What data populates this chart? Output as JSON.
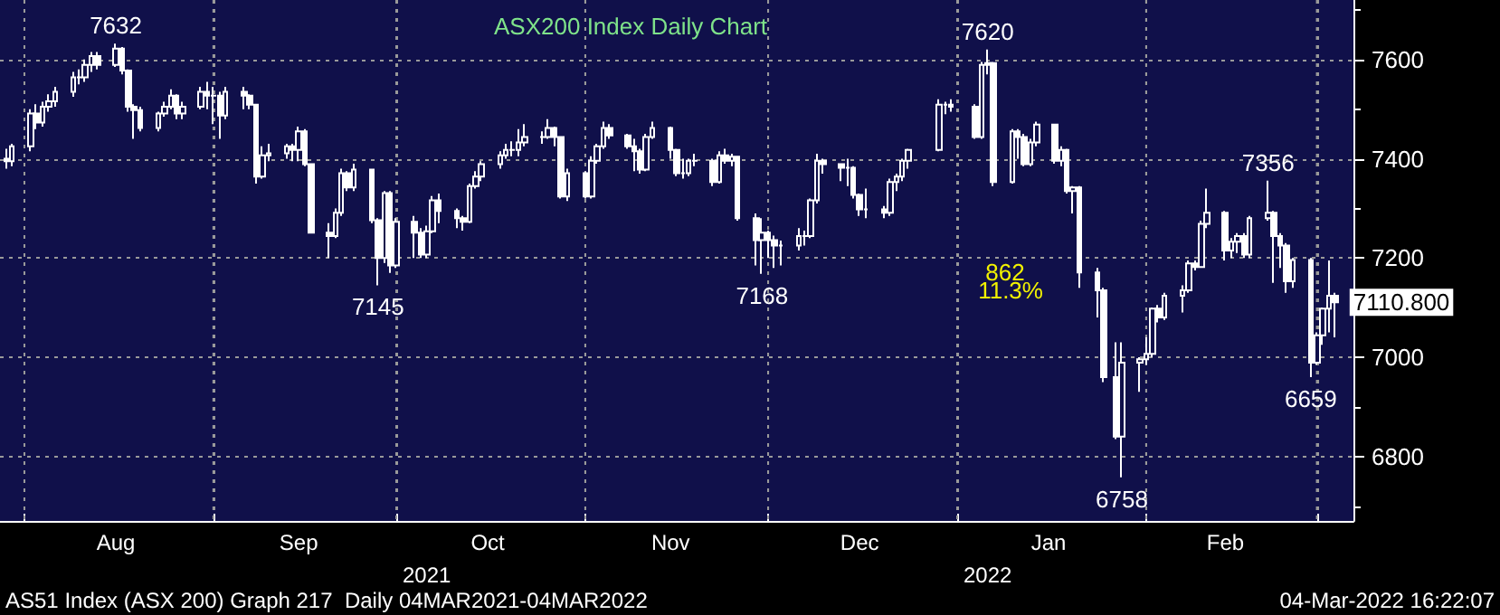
{
  "chart_data": {
    "type": "candlestick",
    "title": "ASX200 Index Daily Chart",
    "x": [
      "2021-07-29",
      "2021-07-30",
      "2021-08-02",
      "2021-08-03",
      "2021-08-04",
      "2021-08-05",
      "2021-08-06",
      "2021-08-09",
      "2021-08-10",
      "2021-08-11",
      "2021-08-12",
      "2021-08-13",
      "2021-08-16",
      "2021-08-17",
      "2021-08-18",
      "2021-08-19",
      "2021-08-20",
      "2021-08-23",
      "2021-08-24",
      "2021-08-25",
      "2021-08-26",
      "2021-08-27",
      "2021-08-30",
      "2021-08-31",
      "2021-09-01",
      "2021-09-02",
      "2021-09-03",
      "2021-09-06",
      "2021-09-07",
      "2021-09-08",
      "2021-09-09",
      "2021-09-10",
      "2021-09-13",
      "2021-09-14",
      "2021-09-15",
      "2021-09-16",
      "2021-09-17",
      "2021-09-20",
      "2021-09-21",
      "2021-09-22",
      "2021-09-23",
      "2021-09-24",
      "2021-09-27",
      "2021-09-28",
      "2021-09-29",
      "2021-09-30",
      "2021-10-01",
      "2021-10-04",
      "2021-10-05",
      "2021-10-06",
      "2021-10-07",
      "2021-10-08",
      "2021-10-11",
      "2021-10-12",
      "2021-10-13",
      "2021-10-14",
      "2021-10-15",
      "2021-10-18",
      "2021-10-19",
      "2021-10-20",
      "2021-10-21",
      "2021-10-22",
      "2021-10-25",
      "2021-10-26",
      "2021-10-27",
      "2021-10-28",
      "2021-10-29",
      "2021-11-01",
      "2021-11-02",
      "2021-11-03",
      "2021-11-04",
      "2021-11-05",
      "2021-11-08",
      "2021-11-09",
      "2021-11-10",
      "2021-11-11",
      "2021-11-12",
      "2021-11-15",
      "2021-11-16",
      "2021-11-17",
      "2021-11-18",
      "2021-11-19",
      "2021-11-22",
      "2021-11-23",
      "2021-11-24",
      "2021-11-25",
      "2021-11-26",
      "2021-11-29",
      "2021-11-30",
      "2021-12-01",
      "2021-12-02",
      "2021-12-03",
      "2021-12-06",
      "2021-12-07",
      "2021-12-08",
      "2021-12-09",
      "2021-12-10",
      "2021-12-13",
      "2021-12-14",
      "2021-12-15",
      "2021-12-16",
      "2021-12-17",
      "2021-12-20",
      "2021-12-21",
      "2021-12-22",
      "2021-12-23",
      "2021-12-24",
      "2021-12-29",
      "2021-12-30",
      "2021-12-31",
      "2022-01-04",
      "2022-01-05",
      "2022-01-06",
      "2022-01-07",
      "2022-01-10",
      "2022-01-11",
      "2022-01-12",
      "2022-01-13",
      "2022-01-14",
      "2022-01-17",
      "2022-01-18",
      "2022-01-19",
      "2022-01-20",
      "2022-01-21",
      "2022-01-24",
      "2022-01-25",
      "2022-01-27",
      "2022-01-28",
      "2022-01-31",
      "2022-02-01",
      "2022-02-02",
      "2022-02-03",
      "2022-02-04",
      "2022-02-07",
      "2022-02-08",
      "2022-02-09",
      "2022-02-10",
      "2022-02-11",
      "2022-02-14",
      "2022-02-15",
      "2022-02-16",
      "2022-02-17",
      "2022-02-18",
      "2022-02-21",
      "2022-02-22",
      "2022-02-23",
      "2022-02-24",
      "2022-02-25",
      "2022-02-28",
      "2022-03-01",
      "2022-03-02",
      "2022-03-03",
      "2022-03-04"
    ],
    "ohlc": [
      [
        7400,
        7420,
        7380,
        7395
      ],
      [
        7395,
        7430,
        7385,
        7425
      ],
      [
        7425,
        7500,
        7415,
        7491
      ],
      [
        7491,
        7510,
        7460,
        7473
      ],
      [
        7473,
        7515,
        7465,
        7505
      ],
      [
        7505,
        7530,
        7495,
        7516
      ],
      [
        7516,
        7545,
        7505,
        7535
      ],
      [
        7535,
        7575,
        7525,
        7564
      ],
      [
        7564,
        7580,
        7550,
        7564
      ],
      [
        7564,
        7600,
        7555,
        7589
      ],
      [
        7589,
        7615,
        7575,
        7607
      ],
      [
        7607,
        7615,
        7580,
        7589
      ],
      [
        7589,
        7632,
        7585,
        7622
      ],
      [
        7622,
        7625,
        7570,
        7578
      ],
      [
        7578,
        7580,
        7495,
        7505
      ],
      [
        7505,
        7510,
        7440,
        7498
      ],
      [
        7498,
        7505,
        7455,
        7462
      ],
      [
        7462,
        7495,
        7455,
        7491
      ],
      [
        7491,
        7515,
        7485,
        7505
      ],
      [
        7505,
        7540,
        7500,
        7527
      ],
      [
        7527,
        7530,
        7480,
        7491
      ],
      [
        7491,
        7515,
        7480,
        7505
      ],
      [
        7505,
        7545,
        7500,
        7535
      ],
      [
        7535,
        7555,
        7500,
        7527
      ],
      [
        7527,
        7545,
        7470,
        7527
      ],
      [
        7527,
        7535,
        7440,
        7487
      ],
      [
        7487,
        7545,
        7480,
        7535
      ],
      [
        7535,
        7545,
        7500,
        7527
      ],
      [
        7527,
        7530,
        7500,
        7509
      ],
      [
        7509,
        7510,
        7350,
        7364
      ],
      [
        7364,
        7425,
        7360,
        7407
      ],
      [
        7407,
        7430,
        7395,
        7411
      ],
      [
        7411,
        7430,
        7400,
        7425
      ],
      [
        7425,
        7430,
        7395,
        7418
      ],
      [
        7418,
        7465,
        7395,
        7455
      ],
      [
        7455,
        7460,
        7385,
        7389
      ],
      [
        7389,
        7390,
        7250,
        7251
      ],
      [
        7251,
        7270,
        7200,
        7244
      ],
      [
        7244,
        7300,
        7240,
        7291
      ],
      [
        7291,
        7380,
        7285,
        7371
      ],
      [
        7371,
        7375,
        7335,
        7342
      ],
      [
        7342,
        7390,
        7335,
        7378
      ],
      [
        7378,
        7380,
        7270,
        7276
      ],
      [
        7276,
        7280,
        7145,
        7200
      ],
      [
        7200,
        7335,
        7190,
        7331
      ],
      [
        7331,
        7335,
        7170,
        7185
      ],
      [
        7185,
        7280,
        7180,
        7273
      ],
      [
        7273,
        7285,
        7200,
        7251
      ],
      [
        7251,
        7260,
        7200,
        7207
      ],
      [
        7207,
        7265,
        7200,
        7254
      ],
      [
        7254,
        7325,
        7250,
        7316
      ],
      [
        7316,
        7330,
        7270,
        7295
      ],
      [
        7295,
        7300,
        7260,
        7280
      ],
      [
        7280,
        7285,
        7255,
        7273
      ],
      [
        7273,
        7350,
        7270,
        7345
      ],
      [
        7345,
        7375,
        7340,
        7364
      ],
      [
        7364,
        7395,
        7355,
        7389
      ],
      [
        7389,
        7415,
        7380,
        7407
      ],
      [
        7407,
        7430,
        7400,
        7418
      ],
      [
        7418,
        7435,
        7405,
        7418
      ],
      [
        7418,
        7460,
        7405,
        7433
      ],
      [
        7433,
        7470,
        7425,
        7444
      ],
      [
        7444,
        7455,
        7430,
        7444
      ],
      [
        7444,
        7480,
        7440,
        7462
      ],
      [
        7462,
        7465,
        7425,
        7444
      ],
      [
        7444,
        7445,
        7320,
        7324
      ],
      [
        7324,
        7380,
        7315,
        7371
      ],
      [
        7371,
        7375,
        7320,
        7324
      ],
      [
        7324,
        7405,
        7320,
        7396
      ],
      [
        7396,
        7430,
        7390,
        7425
      ],
      [
        7425,
        7475,
        7420,
        7462
      ],
      [
        7462,
        7470,
        7440,
        7447
      ],
      [
        7447,
        7450,
        7420,
        7425
      ],
      [
        7425,
        7440,
        7375,
        7415
      ],
      [
        7415,
        7420,
        7370,
        7378
      ],
      [
        7378,
        7450,
        7375,
        7444
      ],
      [
        7444,
        7475,
        7440,
        7462
      ],
      [
        7462,
        7465,
        7400,
        7418
      ],
      [
        7418,
        7420,
        7365,
        7371
      ],
      [
        7371,
        7400,
        7360,
        7371
      ],
      [
        7371,
        7400,
        7365,
        7396
      ],
      [
        7396,
        7410,
        7385,
        7396
      ],
      [
        7396,
        7400,
        7345,
        7353
      ],
      [
        7353,
        7415,
        7350,
        7407
      ],
      [
        7407,
        7420,
        7390,
        7396
      ],
      [
        7396,
        7410,
        7385,
        7404
      ],
      [
        7404,
        7405,
        7275,
        7280
      ],
      [
        7280,
        7290,
        7185,
        7236
      ],
      [
        7236,
        7280,
        7168,
        7251
      ],
      [
        7251,
        7255,
        7200,
        7236
      ],
      [
        7236,
        7245,
        7180,
        7225
      ],
      [
        7225,
        7235,
        7185,
        7225
      ],
      [
        7225,
        7260,
        7215,
        7244
      ],
      [
        7244,
        7255,
        7225,
        7244
      ],
      [
        7244,
        7320,
        7240,
        7316
      ],
      [
        7316,
        7410,
        7310,
        7396
      ],
      [
        7396,
        7400,
        7370,
        7389
      ],
      [
        7389,
        7390,
        7355,
        7382
      ],
      [
        7382,
        7400,
        7345,
        7382
      ],
      [
        7382,
        7385,
        7320,
        7327
      ],
      [
        7327,
        7330,
        7285,
        7298
      ],
      [
        7298,
        7340,
        7280,
        7298
      ],
      [
        7298,
        7305,
        7280,
        7291
      ],
      [
        7291,
        7360,
        7285,
        7353
      ],
      [
        7353,
        7370,
        7335,
        7364
      ],
      [
        7364,
        7400,
        7355,
        7396
      ],
      [
        7396,
        7420,
        7380,
        7418
      ],
      [
        7418,
        7520,
        7415,
        7509
      ],
      [
        7509,
        7515,
        7490,
        7509
      ],
      [
        7509,
        7520,
        7495,
        7505
      ],
      [
        7505,
        7510,
        7440,
        7444
      ],
      [
        7444,
        7595,
        7440,
        7589
      ],
      [
        7589,
        7620,
        7570,
        7593
      ],
      [
        7593,
        7595,
        7345,
        7353
      ],
      [
        7353,
        7460,
        7350,
        7455
      ],
      [
        7455,
        7460,
        7400,
        7444
      ],
      [
        7444,
        7450,
        7385,
        7389
      ],
      [
        7389,
        7440,
        7385,
        7433
      ],
      [
        7433,
        7475,
        7425,
        7469
      ],
      [
        7469,
        7470,
        7390,
        7396
      ],
      [
        7396,
        7425,
        7385,
        7418
      ],
      [
        7418,
        7420,
        7330,
        7335
      ],
      [
        7335,
        7345,
        7290,
        7342
      ],
      [
        7342,
        7345,
        7140,
        7171
      ],
      [
        7171,
        7180,
        7080,
        7135
      ],
      [
        7135,
        7140,
        6950,
        6960
      ],
      [
        6960,
        7030,
        6835,
        6840
      ],
      [
        6840,
        7030,
        6758,
        6989
      ],
      [
        6989,
        7000,
        6930,
        6996
      ],
      [
        6996,
        7040,
        6985,
        7007
      ],
      [
        7007,
        7100,
        7000,
        7098
      ],
      [
        7098,
        7105,
        7070,
        7080
      ],
      [
        7080,
        7130,
        7075,
        7124
      ],
      [
        7124,
        7145,
        7090,
        7135
      ],
      [
        7135,
        7195,
        7130,
        7189
      ],
      [
        7189,
        7195,
        7175,
        7182
      ],
      [
        7182,
        7275,
        7180,
        7269
      ],
      [
        7269,
        7340,
        7260,
        7291
      ],
      [
        7291,
        7295,
        7195,
        7215
      ],
      [
        7215,
        7240,
        7200,
        7233
      ],
      [
        7233,
        7250,
        7210,
        7244
      ],
      [
        7244,
        7250,
        7200,
        7207
      ],
      [
        7207,
        7285,
        7200,
        7280
      ],
      [
        7280,
        7356,
        7275,
        7291
      ],
      [
        7291,
        7295,
        7150,
        7244
      ],
      [
        7244,
        7250,
        7180,
        7225
      ],
      [
        7225,
        7230,
        7130,
        7153
      ],
      [
        7153,
        7200,
        7140,
        7196
      ],
      [
        7196,
        7200,
        6960,
        6989
      ],
      [
        6989,
        7050,
        6985,
        7044
      ],
      [
        7044,
        7100,
        7025,
        7098
      ],
      [
        7098,
        7195,
        7050,
        7124
      ],
      [
        7124,
        7130,
        7040,
        7110.8
      ]
    ],
    "xlim": [
      "2021-07-28",
      "2022-03-07"
    ],
    "xticks": [
      {
        "value": "2021-08-01",
        "label": null
      },
      {
        "value": "2021-08-16",
        "label": "Aug"
      },
      {
        "value": "2021-09-01",
        "label": null
      },
      {
        "value": "2021-09-15",
        "label": "Sep"
      },
      {
        "value": "2021-10-01",
        "label": null
      },
      {
        "value": "2021-10-16",
        "label": "Oct"
      },
      {
        "value": "2021-11-01",
        "label": null
      },
      {
        "value": "2021-11-15",
        "label": "Nov"
      },
      {
        "value": "2021-12-01",
        "label": null
      },
      {
        "value": "2021-12-16",
        "label": "Dec"
      },
      {
        "value": "2022-01-01",
        "label": null
      },
      {
        "value": "2022-01-16",
        "label": "Jan"
      },
      {
        "value": "2022-02-01",
        "label": null
      },
      {
        "value": "2022-02-14",
        "label": "Feb"
      },
      {
        "value": "2022-03-01",
        "label": null
      }
    ],
    "ylim": [
      6670,
      7720
    ],
    "yticks": [
      6800,
      7000,
      7200,
      7400,
      7600
    ],
    "grid": true,
    "x2lim": [
      "2021-07-28",
      "2022-03-07"
    ],
    "x2ticks": [
      {
        "value": "2021-10-06",
        "label": "2021"
      },
      {
        "value": "2022-01-06",
        "label": "2022"
      }
    ],
    "annotations": [
      {
        "text": "7632",
        "x": "2021-08-16",
        "y": 7632
      },
      {
        "text": "7145",
        "x": "2021-09-28",
        "y": 7145
      },
      {
        "text": "7168",
        "x": "2021-11-30",
        "y": 7168
      },
      {
        "text": "7620",
        "x": "2022-01-06",
        "y": 7620
      },
      {
        "text": "862",
        "x": "2022-01-21",
        "y": 7171
      },
      {
        "text": "11.3%",
        "x": "2022-01-24",
        "y": 7135
      },
      {
        "text": "6758",
        "x": "2022-01-28",
        "y": 6758
      },
      {
        "text": "7356",
        "x": "2022-02-21",
        "y": 7356
      },
      {
        "text": "6659",
        "x": "2022-02-28",
        "y": 6960
      },
      {
        "text": "7110.800",
        "x": "2022-03-04",
        "y": 7110.8
      },
      "AS51 Index (ASX 200) Graph 217  Daily 04MAR2021-04MAR2022",
      "04-Mar-2022 16:22:07"
    ]
  }
}
